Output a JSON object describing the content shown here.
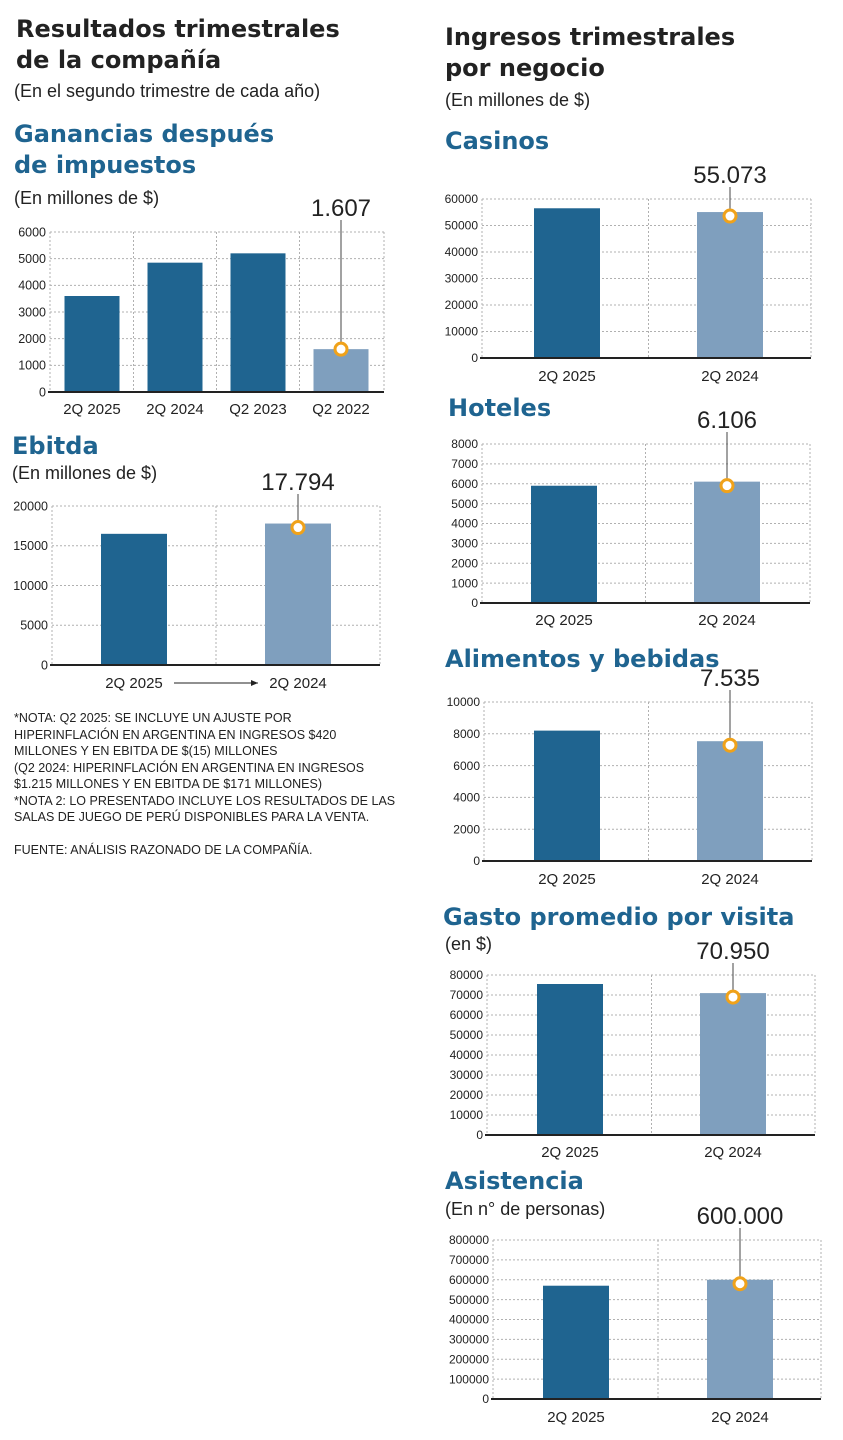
{
  "left": {
    "title_lines": [
      "Resultados trimestrales",
      "de la compañía"
    ],
    "subtitle": "(En el segundo trimestre de cada año)"
  },
  "right": {
    "title_lines": [
      "Ingresos trimestrales",
      "por negocio"
    ],
    "subtitle": "(En millones de $)"
  },
  "notes": [
    "*NOTA: Q2 2025: SE INCLUYE UN AJUSTE POR",
    "HIPERINFLACIÓN EN ARGENTINA EN INGRESOS $420",
    "MILLONES Y EN EBITDA DE $(15) MILLONES",
    "(Q2 2024: HIPERINFLACIÓN EN ARGENTINA EN INGRESOS",
    "$1.215 MILLONES Y EN EBITDA DE $171 MILLONES)",
    "*NOTA 2: LO PRESENTADO INCLUYE LOS RESULTADOS DE LAS",
    "SALAS DE JUEGO DE PERÚ DISPONIBLES PARA LA VENTA.",
    "",
    "FUENTE: ANÁLISIS RAZONADO DE LA COMPAÑÍA."
  ],
  "colors": {
    "dark_bar": "#1f6490",
    "light_bar": "#7f9fbe",
    "marker": "#f0a21a",
    "title": "#1f6490",
    "grid": "#b0b0b0"
  },
  "chart_data": [
    {
      "id": "ganancias",
      "type": "bar",
      "title_lines": [
        "Ganancias después",
        "de impuestos"
      ],
      "subtitle": "(En millones de $)",
      "categories": [
        "2Q 2025",
        "2Q 2024",
        "Q2 2023",
        "Q2 2022"
      ],
      "values": [
        3600,
        4850,
        5200,
        1607
      ],
      "highlight_index": 3,
      "callout": "1.607",
      "yticks": [
        "0",
        "1000",
        "2000",
        "3000",
        "4000",
        "5000",
        "6000"
      ],
      "ylim": [
        0,
        6000
      ],
      "arrow_between": false
    },
    {
      "id": "ebitda",
      "type": "bar",
      "title_lines": [
        "Ebitda"
      ],
      "subtitle": "(En millones de $)",
      "categories": [
        "2Q 2025",
        "2Q 2024"
      ],
      "values": [
        16500,
        17794
      ],
      "highlight_index": 1,
      "callout": "17.794",
      "yticks": [
        "0",
        "5000",
        "10000",
        "15000",
        "20000"
      ],
      "ylim": [
        0,
        20000
      ],
      "arrow_between": true
    },
    {
      "id": "casinos",
      "type": "bar",
      "title_lines": [
        "Casinos"
      ],
      "subtitle": "",
      "categories": [
        "2Q 2025",
        "2Q 2024"
      ],
      "values": [
        56500,
        55073
      ],
      "highlight_index": 1,
      "callout": "55.073",
      "yticks": [
        "0",
        "10000",
        "20000",
        "30000",
        "40000",
        "50000",
        "60000"
      ],
      "ylim": [
        0,
        60000
      ],
      "arrow_between": false
    },
    {
      "id": "hoteles",
      "type": "bar",
      "title_lines": [
        "Hoteles"
      ],
      "subtitle": "",
      "categories": [
        "2Q 2025",
        "2Q 2024"
      ],
      "values": [
        5900,
        6106
      ],
      "highlight_index": 1,
      "callout": "6.106",
      "yticks": [
        "0",
        "1000",
        "2000",
        "3000",
        "4000",
        "5000",
        "6000",
        "7000",
        "8000"
      ],
      "ylim": [
        0,
        8000
      ],
      "arrow_between": false
    },
    {
      "id": "alimentos",
      "type": "bar",
      "title_lines": [
        "Alimentos y bebidas"
      ],
      "subtitle": "",
      "categories": [
        "2Q 2025",
        "2Q 2024"
      ],
      "values": [
        8200,
        7535
      ],
      "highlight_index": 1,
      "callout": "7.535",
      "yticks": [
        "0",
        "2000",
        "4000",
        "6000",
        "8000",
        "10000"
      ],
      "ylim": [
        0,
        10000
      ],
      "arrow_between": false
    },
    {
      "id": "gasto",
      "type": "bar",
      "title_lines": [
        "Gasto promedio por visita"
      ],
      "subtitle": "(en $)",
      "categories": [
        "2Q 2025",
        "2Q 2024"
      ],
      "values": [
        75500,
        70950
      ],
      "highlight_index": 1,
      "callout": "70.950",
      "yticks": [
        "0",
        "10000",
        "20000",
        "30000",
        "40000",
        "50000",
        "60000",
        "70000",
        "80000"
      ],
      "ylim": [
        0,
        80000
      ],
      "arrow_between": false
    },
    {
      "id": "asistencia",
      "type": "bar",
      "title_lines": [
        "Asistencia"
      ],
      "subtitle": "(En n° de personas)",
      "categories": [
        "2Q 2025",
        "2Q 2024"
      ],
      "values": [
        570000,
        600000
      ],
      "highlight_index": 1,
      "callout": "600.000",
      "yticks": [
        "0",
        "100000",
        "200000",
        "300000",
        "400000",
        "500000",
        "600000",
        "700000",
        "800000"
      ],
      "ylim": [
        0,
        800000
      ],
      "arrow_between": false
    }
  ]
}
